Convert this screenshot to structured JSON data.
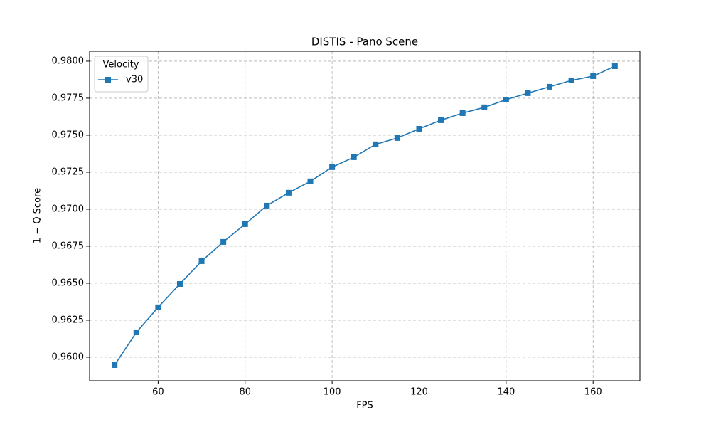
{
  "chart_data": {
    "type": "line",
    "title": "DISTIS - Pano Scene",
    "xlabel": "FPS",
    "ylabel": "1 − Q Score",
    "x": [
      50,
      55,
      60,
      65,
      70,
      75,
      80,
      85,
      90,
      95,
      100,
      105,
      110,
      115,
      120,
      125,
      130,
      135,
      140,
      145,
      150,
      155,
      160,
      165
    ],
    "series": [
      {
        "name": "v30",
        "color": "#1f77b4",
        "marker": "square",
        "values": [
          0.95947,
          0.96168,
          0.96337,
          0.96495,
          0.96649,
          0.96779,
          0.96899,
          0.97024,
          0.97111,
          0.97188,
          0.97284,
          0.97351,
          0.97438,
          0.97481,
          0.97543,
          0.97601,
          0.97649,
          0.97688,
          0.9774,
          0.97784,
          0.97827,
          0.9787,
          0.97899,
          0.97966
        ]
      }
    ],
    "legend_title": "Velocity",
    "legend": "upper left",
    "grid": true,
    "xlim": [
      44.25,
      170.75
    ],
    "xticks": [
      60,
      80,
      100,
      120,
      140,
      160
    ],
    "ylim": [
      0.95841,
      0.98067
    ],
    "yticks": [
      {
        "value": 0.96,
        "label": "0.9600"
      },
      {
        "value": 0.9625,
        "label": "0.9625"
      },
      {
        "value": 0.965,
        "label": "0.9650"
      },
      {
        "value": 0.9675,
        "label": "0.9675"
      },
      {
        "value": 0.97,
        "label": "0.9700"
      },
      {
        "value": 0.9725,
        "label": "0.9725"
      },
      {
        "value": 0.975,
        "label": "0.9750"
      },
      {
        "value": 0.9775,
        "label": "0.9775"
      },
      {
        "value": 0.98,
        "label": "0.9800"
      }
    ]
  }
}
